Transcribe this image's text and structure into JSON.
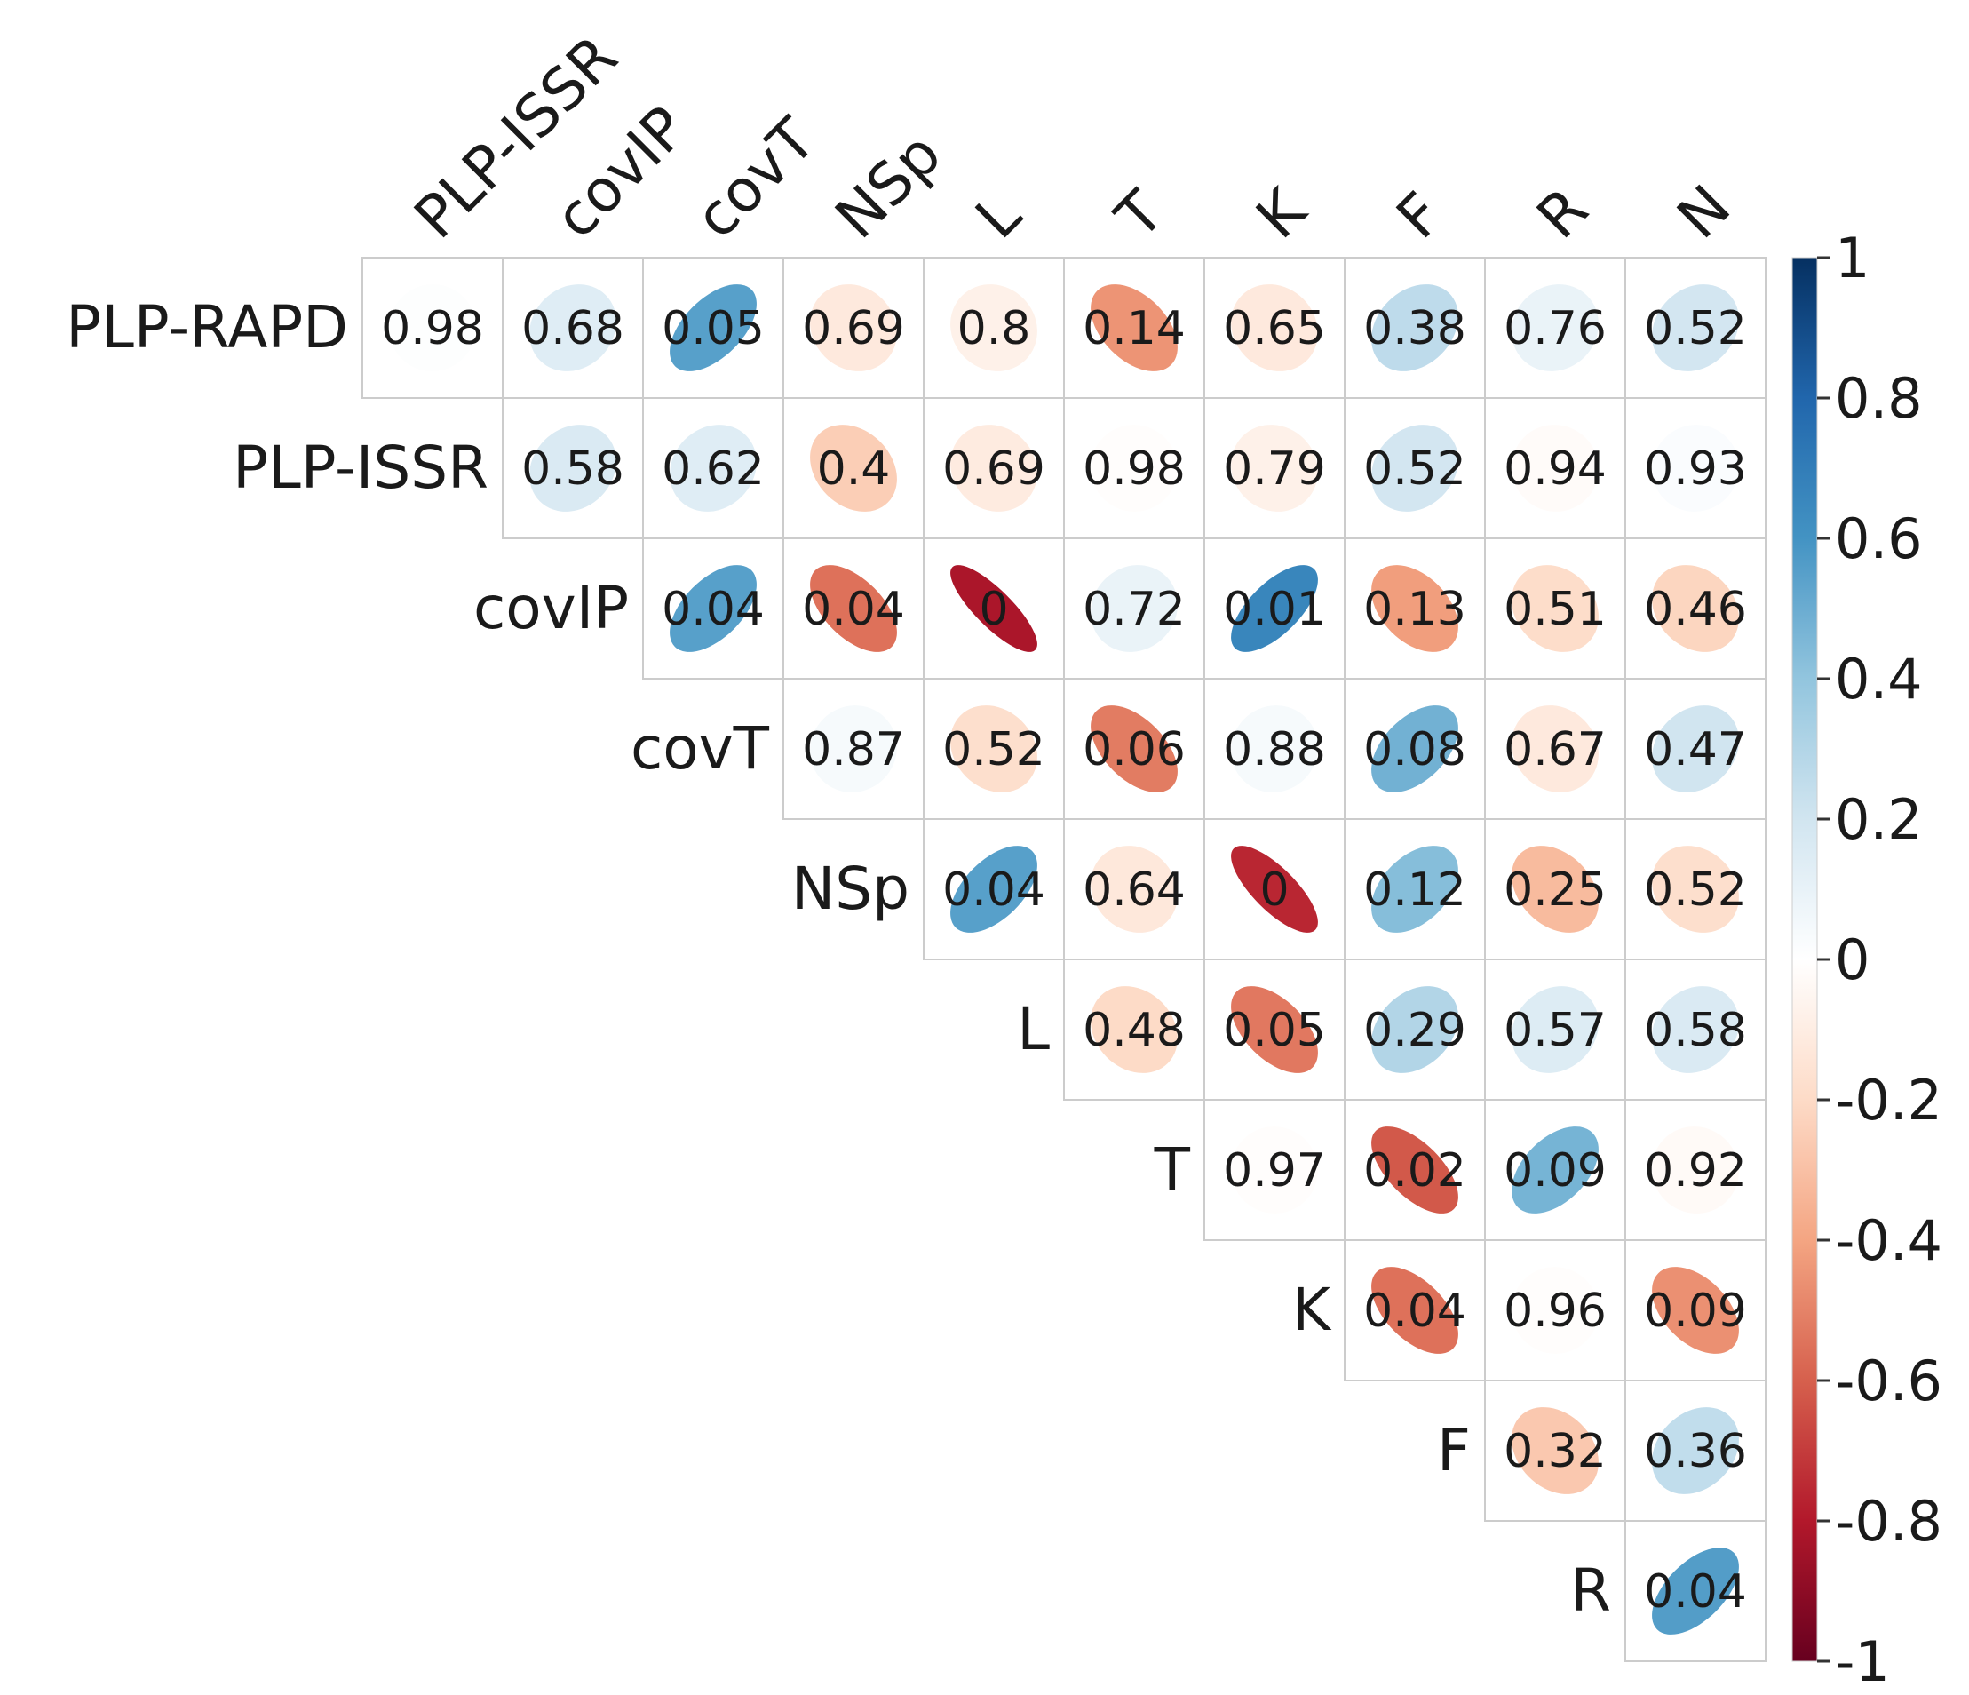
{
  "chart_data": {
    "type": "heatmap",
    "subtype": "correlogram-upper-triangle-ellipse",
    "title": "",
    "row_labels": [
      "PLP-RAPD",
      "PLP-ISSR",
      "covIP",
      "covT",
      "NSp",
      "L",
      "T",
      "K",
      "F",
      "R"
    ],
    "col_labels": [
      "PLP-ISSR",
      "covIP",
      "covT",
      "NSp",
      "L",
      "T",
      "K",
      "F",
      "R",
      "N"
    ],
    "cells": [
      {
        "row": "PLP-RAPD",
        "col": "PLP-ISSR",
        "r": 0.01,
        "p_label": "0.98"
      },
      {
        "row": "PLP-RAPD",
        "col": "covIP",
        "r": 0.14,
        "p_label": "0.68"
      },
      {
        "row": "PLP-RAPD",
        "col": "covT",
        "r": 0.55,
        "p_label": "0.05"
      },
      {
        "row": "PLP-RAPD",
        "col": "NSp",
        "r": -0.12,
        "p_label": "0.69"
      },
      {
        "row": "PLP-RAPD",
        "col": "L",
        "r": -0.08,
        "p_label": "0.8"
      },
      {
        "row": "PLP-RAPD",
        "col": "T",
        "r": -0.45,
        "p_label": "0.14"
      },
      {
        "row": "PLP-RAPD",
        "col": "K",
        "r": -0.12,
        "p_label": "0.65"
      },
      {
        "row": "PLP-RAPD",
        "col": "F",
        "r": 0.26,
        "p_label": "0.38"
      },
      {
        "row": "PLP-RAPD",
        "col": "R",
        "r": 0.09,
        "p_label": "0.76"
      },
      {
        "row": "PLP-RAPD",
        "col": "N",
        "r": 0.19,
        "p_label": "0.52"
      },
      {
        "row": "PLP-ISSR",
        "col": "covIP",
        "r": 0.16,
        "p_label": "0.58"
      },
      {
        "row": "PLP-ISSR",
        "col": "covT",
        "r": 0.14,
        "p_label": "0.62"
      },
      {
        "row": "PLP-ISSR",
        "col": "NSp",
        "r": -0.25,
        "p_label": "0.4"
      },
      {
        "row": "PLP-ISSR",
        "col": "L",
        "r": -0.11,
        "p_label": "0.69"
      },
      {
        "row": "PLP-ISSR",
        "col": "T",
        "r": -0.01,
        "p_label": "0.98"
      },
      {
        "row": "PLP-ISSR",
        "col": "K",
        "r": -0.08,
        "p_label": "0.79"
      },
      {
        "row": "PLP-ISSR",
        "col": "F",
        "r": 0.19,
        "p_label": "0.52"
      },
      {
        "row": "PLP-ISSR",
        "col": "R",
        "r": -0.02,
        "p_label": "0.94"
      },
      {
        "row": "PLP-ISSR",
        "col": "N",
        "r": 0.02,
        "p_label": "0.93"
      },
      {
        "row": "covIP",
        "col": "covT",
        "r": 0.55,
        "p_label": "0.04"
      },
      {
        "row": "covIP",
        "col": "NSp",
        "r": -0.55,
        "p_label": "0.04"
      },
      {
        "row": "covIP",
        "col": "L",
        "r": -0.82,
        "p_label": "0"
      },
      {
        "row": "covIP",
        "col": "T",
        "r": 0.09,
        "p_label": "0.72"
      },
      {
        "row": "covIP",
        "col": "K",
        "r": 0.66,
        "p_label": "0.01"
      },
      {
        "row": "covIP",
        "col": "F",
        "r": -0.42,
        "p_label": "0.13"
      },
      {
        "row": "covIP",
        "col": "R",
        "r": -0.19,
        "p_label": "0.51"
      },
      {
        "row": "covIP",
        "col": "N",
        "r": -0.22,
        "p_label": "0.46"
      },
      {
        "row": "covT",
        "col": "NSp",
        "r": 0.04,
        "p_label": "0.87"
      },
      {
        "row": "covT",
        "col": "L",
        "r": -0.18,
        "p_label": "0.52"
      },
      {
        "row": "covT",
        "col": "T",
        "r": -0.52,
        "p_label": "0.06"
      },
      {
        "row": "covT",
        "col": "K",
        "r": 0.04,
        "p_label": "0.88"
      },
      {
        "row": "covT",
        "col": "F",
        "r": 0.48,
        "p_label": "0.08"
      },
      {
        "row": "covT",
        "col": "R",
        "r": -0.12,
        "p_label": "0.67"
      },
      {
        "row": "covT",
        "col": "N",
        "r": 0.2,
        "p_label": "0.47"
      },
      {
        "row": "NSp",
        "col": "L",
        "r": 0.55,
        "p_label": "0.04"
      },
      {
        "row": "NSp",
        "col": "T",
        "r": -0.13,
        "p_label": "0.64"
      },
      {
        "row": "NSp",
        "col": "K",
        "r": -0.76,
        "p_label": "0"
      },
      {
        "row": "NSp",
        "col": "F",
        "r": 0.43,
        "p_label": "0.12"
      },
      {
        "row": "NSp",
        "col": "R",
        "r": -0.32,
        "p_label": "0.25"
      },
      {
        "row": "NSp",
        "col": "N",
        "r": -0.18,
        "p_label": "0.52"
      },
      {
        "row": "L",
        "col": "T",
        "r": -0.2,
        "p_label": "0.48"
      },
      {
        "row": "L",
        "col": "K",
        "r": -0.53,
        "p_label": "0.05"
      },
      {
        "row": "L",
        "col": "F",
        "r": 0.3,
        "p_label": "0.29"
      },
      {
        "row": "L",
        "col": "R",
        "r": 0.15,
        "p_label": "0.57"
      },
      {
        "row": "L",
        "col": "N",
        "r": 0.16,
        "p_label": "0.58"
      },
      {
        "row": "T",
        "col": "K",
        "r": -0.01,
        "p_label": "0.97"
      },
      {
        "row": "T",
        "col": "F",
        "r": -0.62,
        "p_label": "0.02"
      },
      {
        "row": "T",
        "col": "R",
        "r": 0.47,
        "p_label": "0.09"
      },
      {
        "row": "T",
        "col": "N",
        "r": -0.03,
        "p_label": "0.92"
      },
      {
        "row": "K",
        "col": "F",
        "r": -0.55,
        "p_label": "0.04"
      },
      {
        "row": "K",
        "col": "R",
        "r": -0.01,
        "p_label": "0.96"
      },
      {
        "row": "K",
        "col": "N",
        "r": -0.46,
        "p_label": "0.09"
      },
      {
        "row": "F",
        "col": "R",
        "r": -0.27,
        "p_label": "0.32"
      },
      {
        "row": "F",
        "col": "N",
        "r": 0.25,
        "p_label": "0.36"
      },
      {
        "row": "R",
        "col": "N",
        "r": 0.56,
        "p_label": "0.04"
      }
    ],
    "colorbar": {
      "range": [
        -1,
        1
      ],
      "ticks": [
        1,
        0.8,
        0.6,
        0.4,
        0.2,
        0,
        -0.2,
        -0.4,
        -0.6,
        -0.8,
        -1
      ],
      "tick_labels": [
        "1",
        "0.8",
        "0.6",
        "0.4",
        "0.2",
        "0",
        "-0.2",
        "-0.4",
        "-0.6",
        "-0.8",
        "-1"
      ],
      "color_negative": "#67001F",
      "color_mid": "#FFFFFF",
      "color_positive": "#053061"
    },
    "legend_placement": "right"
  }
}
